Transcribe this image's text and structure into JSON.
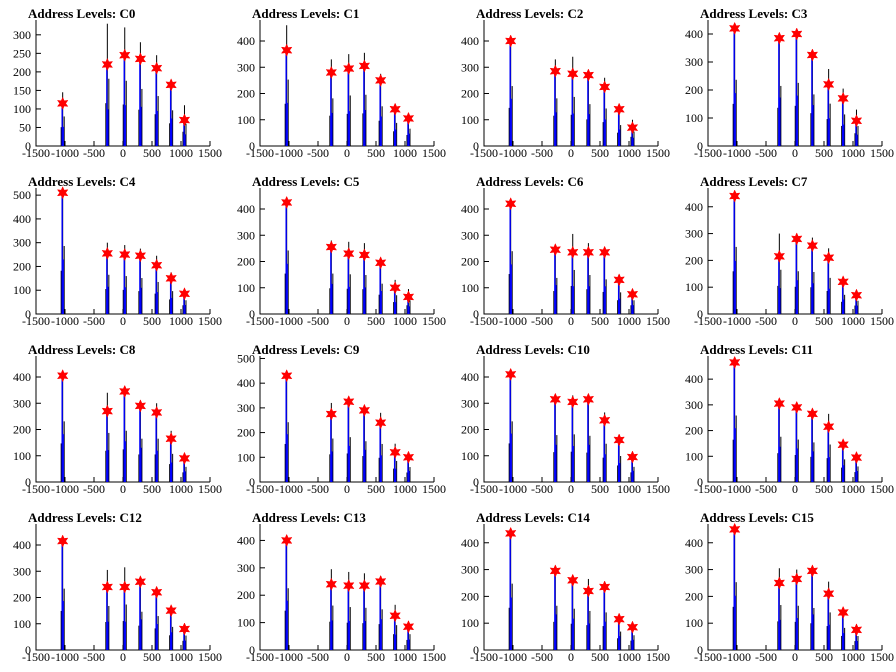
{
  "chart_data": [
    {
      "type": "histogram",
      "title": "Address Levels: C0",
      "xlim": [
        -1500,
        1500
      ],
      "ylim": [
        0,
        340
      ],
      "yticks": [
        0,
        50,
        100,
        150,
        200,
        250,
        300
      ],
      "xticks": [
        -1500,
        -1000,
        -500,
        0,
        500,
        1000,
        1500
      ],
      "peaks": [
        {
          "x": -1040,
          "black": 145,
          "blue": 115
        },
        {
          "x": -270,
          "black": 330,
          "blue": 220
        },
        {
          "x": 30,
          "black": 320,
          "blue": 245
        },
        {
          "x": 300,
          "black": 280,
          "blue": 235
        },
        {
          "x": 580,
          "black": 245,
          "blue": 210
        },
        {
          "x": 830,
          "black": 175,
          "blue": 165
        },
        {
          "x": 1060,
          "black": 110,
          "blue": 70
        }
      ]
    },
    {
      "type": "histogram",
      "title": "Address Levels: C1",
      "xlim": [
        -1500,
        1500
      ],
      "ylim": [
        0,
        480
      ],
      "yticks": [
        0,
        100,
        200,
        300,
        400
      ],
      "xticks": [
        -1500,
        -1000,
        -500,
        0,
        500,
        1000,
        1500
      ],
      "peaks": [
        {
          "x": -1040,
          "black": 460,
          "blue": 365
        },
        {
          "x": -270,
          "black": 330,
          "blue": 280
        },
        {
          "x": 30,
          "black": 350,
          "blue": 295
        },
        {
          "x": 300,
          "black": 355,
          "blue": 305
        },
        {
          "x": 580,
          "black": 275,
          "blue": 250
        },
        {
          "x": 830,
          "black": 160,
          "blue": 140
        },
        {
          "x": 1060,
          "black": 120,
          "blue": 105
        }
      ]
    },
    {
      "type": "histogram",
      "title": "Address Levels: C2",
      "xlim": [
        -1500,
        1500
      ],
      "ylim": [
        0,
        480
      ],
      "yticks": [
        0,
        100,
        200,
        300,
        400
      ],
      "xticks": [
        -1500,
        -1000,
        -500,
        0,
        500,
        1000,
        1500
      ],
      "peaks": [
        {
          "x": -1040,
          "black": 415,
          "blue": 400
        },
        {
          "x": -270,
          "black": 330,
          "blue": 285
        },
        {
          "x": 30,
          "black": 340,
          "blue": 275
        },
        {
          "x": 300,
          "black": 290,
          "blue": 270
        },
        {
          "x": 580,
          "black": 260,
          "blue": 225
        },
        {
          "x": 830,
          "black": 145,
          "blue": 140
        },
        {
          "x": 1060,
          "black": 100,
          "blue": 70
        }
      ]
    },
    {
      "type": "histogram",
      "title": "Address Levels: C3",
      "xlim": [
        -1500,
        1500
      ],
      "ylim": [
        0,
        450
      ],
      "yticks": [
        0,
        100,
        200,
        300,
        400
      ],
      "xticks": [
        -1500,
        -1000,
        -500,
        0,
        500,
        1000,
        1500
      ],
      "peaks": [
        {
          "x": -1040,
          "black": 430,
          "blue": 420
        },
        {
          "x": -270,
          "black": 390,
          "blue": 385
        },
        {
          "x": 30,
          "black": 410,
          "blue": 400
        },
        {
          "x": 300,
          "black": 335,
          "blue": 325
        },
        {
          "x": 580,
          "black": 275,
          "blue": 220
        },
        {
          "x": 830,
          "black": 205,
          "blue": 170
        },
        {
          "x": 1060,
          "black": 130,
          "blue": 90
        }
      ]
    },
    {
      "type": "histogram",
      "title": "Address Levels: C4",
      "xlim": [
        -1500,
        1500
      ],
      "ylim": [
        0,
        530
      ],
      "yticks": [
        0,
        100,
        200,
        300,
        400,
        500
      ],
      "xticks": [
        -1500,
        -1000,
        -500,
        0,
        500,
        1000,
        1500
      ],
      "peaks": [
        {
          "x": -1040,
          "black": 520,
          "blue": 510
        },
        {
          "x": -270,
          "black": 300,
          "blue": 255
        },
        {
          "x": 30,
          "black": 290,
          "blue": 250
        },
        {
          "x": 300,
          "black": 275,
          "blue": 245
        },
        {
          "x": 580,
          "black": 245,
          "blue": 205
        },
        {
          "x": 830,
          "black": 175,
          "blue": 150
        },
        {
          "x": 1060,
          "black": 105,
          "blue": 85
        }
      ]
    },
    {
      "type": "histogram",
      "title": "Address Levels: C5",
      "xlim": [
        -1500,
        1500
      ],
      "ylim": [
        0,
        480
      ],
      "yticks": [
        0,
        100,
        200,
        300,
        400
      ],
      "xticks": [
        -1500,
        -1000,
        -500,
        0,
        500,
        1000,
        1500
      ],
      "peaks": [
        {
          "x": -1040,
          "black": 440,
          "blue": 425
        },
        {
          "x": -270,
          "black": 280,
          "blue": 255
        },
        {
          "x": 30,
          "black": 275,
          "blue": 230
        },
        {
          "x": 300,
          "black": 270,
          "blue": 225
        },
        {
          "x": 580,
          "black": 210,
          "blue": 195
        },
        {
          "x": 830,
          "black": 130,
          "blue": 100
        },
        {
          "x": 1060,
          "black": 95,
          "blue": 65
        }
      ]
    },
    {
      "type": "histogram",
      "title": "Address Levels: C6",
      "xlim": [
        -1500,
        1500
      ],
      "ylim": [
        0,
        480
      ],
      "yticks": [
        0,
        100,
        200,
        300,
        400
      ],
      "xticks": [
        -1500,
        -1000,
        -500,
        0,
        500,
        1000,
        1500
      ],
      "peaks": [
        {
          "x": -1040,
          "black": 435,
          "blue": 420
        },
        {
          "x": -270,
          "black": 250,
          "blue": 245
        },
        {
          "x": 30,
          "black": 305,
          "blue": 235
        },
        {
          "x": 300,
          "black": 270,
          "blue": 235
        },
        {
          "x": 580,
          "black": 240,
          "blue": 235
        },
        {
          "x": 830,
          "black": 150,
          "blue": 130
        },
        {
          "x": 1060,
          "black": 95,
          "blue": 75
        }
      ]
    },
    {
      "type": "histogram",
      "title": "Address Levels: C7",
      "xlim": [
        -1500,
        1500
      ],
      "ylim": [
        0,
        470
      ],
      "yticks": [
        0,
        100,
        200,
        300,
        400
      ],
      "xticks": [
        -1500,
        -1000,
        -500,
        0,
        500,
        1000,
        1500
      ],
      "peaks": [
        {
          "x": -1040,
          "black": 455,
          "blue": 440
        },
        {
          "x": -270,
          "black": 300,
          "blue": 215
        },
        {
          "x": 30,
          "black": 290,
          "blue": 280
        },
        {
          "x": 300,
          "black": 285,
          "blue": 255
        },
        {
          "x": 580,
          "black": 245,
          "blue": 210
        },
        {
          "x": 830,
          "black": 130,
          "blue": 120
        },
        {
          "x": 1060,
          "black": 90,
          "blue": 70
        }
      ]
    },
    {
      "type": "histogram",
      "title": "Address Levels: C8",
      "xlim": [
        -1500,
        1500
      ],
      "ylim": [
        0,
        480
      ],
      "yticks": [
        0,
        100,
        200,
        300,
        400
      ],
      "xticks": [
        -1500,
        -1000,
        -500,
        0,
        500,
        1000,
        1500
      ],
      "peaks": [
        {
          "x": -1040,
          "black": 420,
          "blue": 405
        },
        {
          "x": -270,
          "black": 340,
          "blue": 270
        },
        {
          "x": 30,
          "black": 355,
          "blue": 345
        },
        {
          "x": 300,
          "black": 300,
          "blue": 290
        },
        {
          "x": 580,
          "black": 300,
          "blue": 265
        },
        {
          "x": 830,
          "black": 195,
          "blue": 165
        },
        {
          "x": 1060,
          "black": 105,
          "blue": 90
        }
      ]
    },
    {
      "type": "histogram",
      "title": "Address Levels: C9",
      "xlim": [
        -1500,
        1500
      ],
      "ylim": [
        0,
        510
      ],
      "yticks": [
        0,
        100,
        200,
        300,
        400,
        500
      ],
      "xticks": [
        -1500,
        -1000,
        -500,
        0,
        500,
        1000,
        1500
      ],
      "peaks": [
        {
          "x": -1040,
          "black": 440,
          "blue": 430
        },
        {
          "x": -270,
          "black": 320,
          "blue": 275
        },
        {
          "x": 30,
          "black": 330,
          "blue": 325
        },
        {
          "x": 300,
          "black": 300,
          "blue": 290
        },
        {
          "x": 580,
          "black": 280,
          "blue": 240
        },
        {
          "x": 830,
          "black": 155,
          "blue": 120
        },
        {
          "x": 1060,
          "black": 110,
          "blue": 100
        }
      ]
    },
    {
      "type": "histogram",
      "title": "Address Levels: C10",
      "xlim": [
        -1500,
        1500
      ],
      "ylim": [
        0,
        480
      ],
      "yticks": [
        0,
        100,
        200,
        300,
        400
      ],
      "xticks": [
        -1500,
        -1000,
        -500,
        0,
        500,
        1000,
        1500
      ],
      "peaks": [
        {
          "x": -1040,
          "black": 420,
          "blue": 410
        },
        {
          "x": -270,
          "black": 325,
          "blue": 315
        },
        {
          "x": 30,
          "black": 330,
          "blue": 305
        },
        {
          "x": 300,
          "black": 320,
          "blue": 315
        },
        {
          "x": 580,
          "black": 265,
          "blue": 235
        },
        {
          "x": 830,
          "black": 180,
          "blue": 160
        },
        {
          "x": 1060,
          "black": 105,
          "blue": 95
        }
      ]
    },
    {
      "type": "histogram",
      "title": "Address Levels: C11",
      "xlim": [
        -1500,
        1500
      ],
      "ylim": [
        0,
        490
      ],
      "yticks": [
        0,
        100,
        200,
        300,
        400
      ],
      "xticks": [
        -1500,
        -1000,
        -500,
        0,
        500,
        1000,
        1500
      ],
      "peaks": [
        {
          "x": -1040,
          "black": 470,
          "blue": 465
        },
        {
          "x": -270,
          "black": 320,
          "blue": 305
        },
        {
          "x": 30,
          "black": 300,
          "blue": 290
        },
        {
          "x": 300,
          "black": 280,
          "blue": 265
        },
        {
          "x": 580,
          "black": 265,
          "blue": 215
        },
        {
          "x": 830,
          "black": 160,
          "blue": 145
        },
        {
          "x": 1060,
          "black": 110,
          "blue": 95
        }
      ]
    },
    {
      "type": "histogram",
      "title": "Address Levels: C12",
      "xlim": [
        -1500,
        1500
      ],
      "ylim": [
        0,
        480
      ],
      "yticks": [
        0,
        100,
        200,
        300,
        400
      ],
      "xticks": [
        -1500,
        -1000,
        -500,
        0,
        500,
        1000,
        1500
      ],
      "peaks": [
        {
          "x": -1040,
          "black": 425,
          "blue": 415
        },
        {
          "x": -270,
          "black": 305,
          "blue": 240
        },
        {
          "x": 30,
          "black": 315,
          "blue": 240
        },
        {
          "x": 300,
          "black": 265,
          "blue": 260
        },
        {
          "x": 580,
          "black": 235,
          "blue": 220
        },
        {
          "x": 830,
          "black": 160,
          "blue": 150
        },
        {
          "x": 1060,
          "black": 100,
          "blue": 80
        }
      ]
    },
    {
      "type": "histogram",
      "title": "Address Levels: C13",
      "xlim": [
        -1500,
        1500
      ],
      "ylim": [
        0,
        460
      ],
      "yticks": [
        0,
        100,
        200,
        300,
        400
      ],
      "xticks": [
        -1500,
        -1000,
        -500,
        0,
        500,
        1000,
        1500
      ],
      "peaks": [
        {
          "x": -1040,
          "black": 410,
          "blue": 400
        },
        {
          "x": -270,
          "black": 295,
          "blue": 240
        },
        {
          "x": 30,
          "black": 285,
          "blue": 235
        },
        {
          "x": 300,
          "black": 280,
          "blue": 235
        },
        {
          "x": 580,
          "black": 270,
          "blue": 250
        },
        {
          "x": 830,
          "black": 165,
          "blue": 125
        },
        {
          "x": 1060,
          "black": 105,
          "blue": 85
        }
      ]
    },
    {
      "type": "histogram",
      "title": "Address Levels: C14",
      "xlim": [
        -1500,
        1500
      ],
      "ylim": [
        0,
        470
      ],
      "yticks": [
        0,
        100,
        200,
        300,
        400
      ],
      "xticks": [
        -1500,
        -1000,
        -500,
        0,
        500,
        1000,
        1500
      ],
      "peaks": [
        {
          "x": -1040,
          "black": 450,
          "blue": 435
        },
        {
          "x": -270,
          "black": 300,
          "blue": 295
        },
        {
          "x": 30,
          "black": 280,
          "blue": 260
        },
        {
          "x": 300,
          "black": 265,
          "blue": 220
        },
        {
          "x": 580,
          "black": 255,
          "blue": 235
        },
        {
          "x": 830,
          "black": 125,
          "blue": 115
        },
        {
          "x": 1060,
          "black": 100,
          "blue": 85
        }
      ]
    },
    {
      "type": "histogram",
      "title": "Address Levels: C15",
      "xlim": [
        -1500,
        1500
      ],
      "ylim": [
        0,
        470
      ],
      "yticks": [
        0,
        100,
        200,
        300,
        400
      ],
      "xticks": [
        -1500,
        -1000,
        -500,
        0,
        500,
        1000,
        1500
      ],
      "peaks": [
        {
          "x": -1040,
          "black": 460,
          "blue": 450
        },
        {
          "x": -270,
          "black": 305,
          "blue": 250
        },
        {
          "x": 30,
          "black": 300,
          "blue": 265
        },
        {
          "x": 300,
          "black": 285,
          "blue": 295
        },
        {
          "x": 580,
          "black": 255,
          "blue": 210
        },
        {
          "x": 830,
          "black": 150,
          "blue": 140
        },
        {
          "x": 1060,
          "black": 95,
          "blue": 75
        }
      ]
    }
  ],
  "colors": {
    "hist_black": "#000000",
    "hist_blue": "#0000ff",
    "marker": "#ff0000",
    "axis": "#000000"
  }
}
